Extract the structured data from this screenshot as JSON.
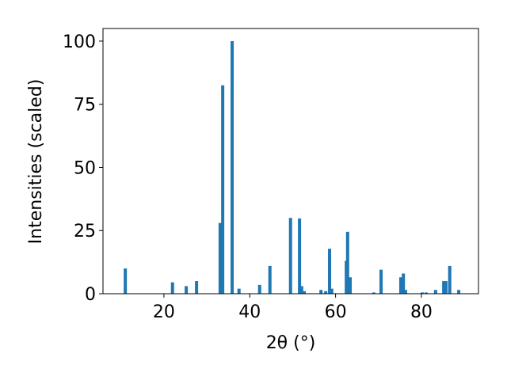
{
  "chart_data": {
    "type": "bar",
    "x_label": "2θ (°)",
    "y_label": "Intensities (scaled)",
    "x": [
      11.0,
      22.0,
      25.2,
      27.6,
      33.1,
      33.7,
      35.9,
      37.5,
      42.3,
      44.7,
      49.5,
      51.6,
      52.1,
      52.7,
      56.6,
      57.7,
      58.6,
      59.1,
      62.5,
      62.8,
      63.4,
      68.9,
      70.6,
      75.2,
      75.8,
      76.3,
      80.2,
      81.1,
      83.3,
      85.2,
      85.7,
      86.6,
      88.7
    ],
    "values": [
      10,
      4.5,
      3,
      5,
      28,
      82.5,
      100,
      2,
      3.5,
      11,
      30,
      29.8,
      3,
      1,
      1.5,
      1,
      17.8,
      2,
      13,
      24.5,
      6.5,
      0.5,
      9.5,
      6.5,
      8,
      1.5,
      0.5,
      0.5,
      1.5,
      5,
      5,
      11,
      1.5
    ],
    "color": "#1f77b4",
    "xlim": [
      5.8,
      93.3
    ],
    "xticks": [
      20,
      40,
      60,
      80
    ],
    "ylim": [
      0,
      105
    ],
    "yticks": [
      0,
      25,
      50,
      75,
      100
    ],
    "grid": false
  }
}
